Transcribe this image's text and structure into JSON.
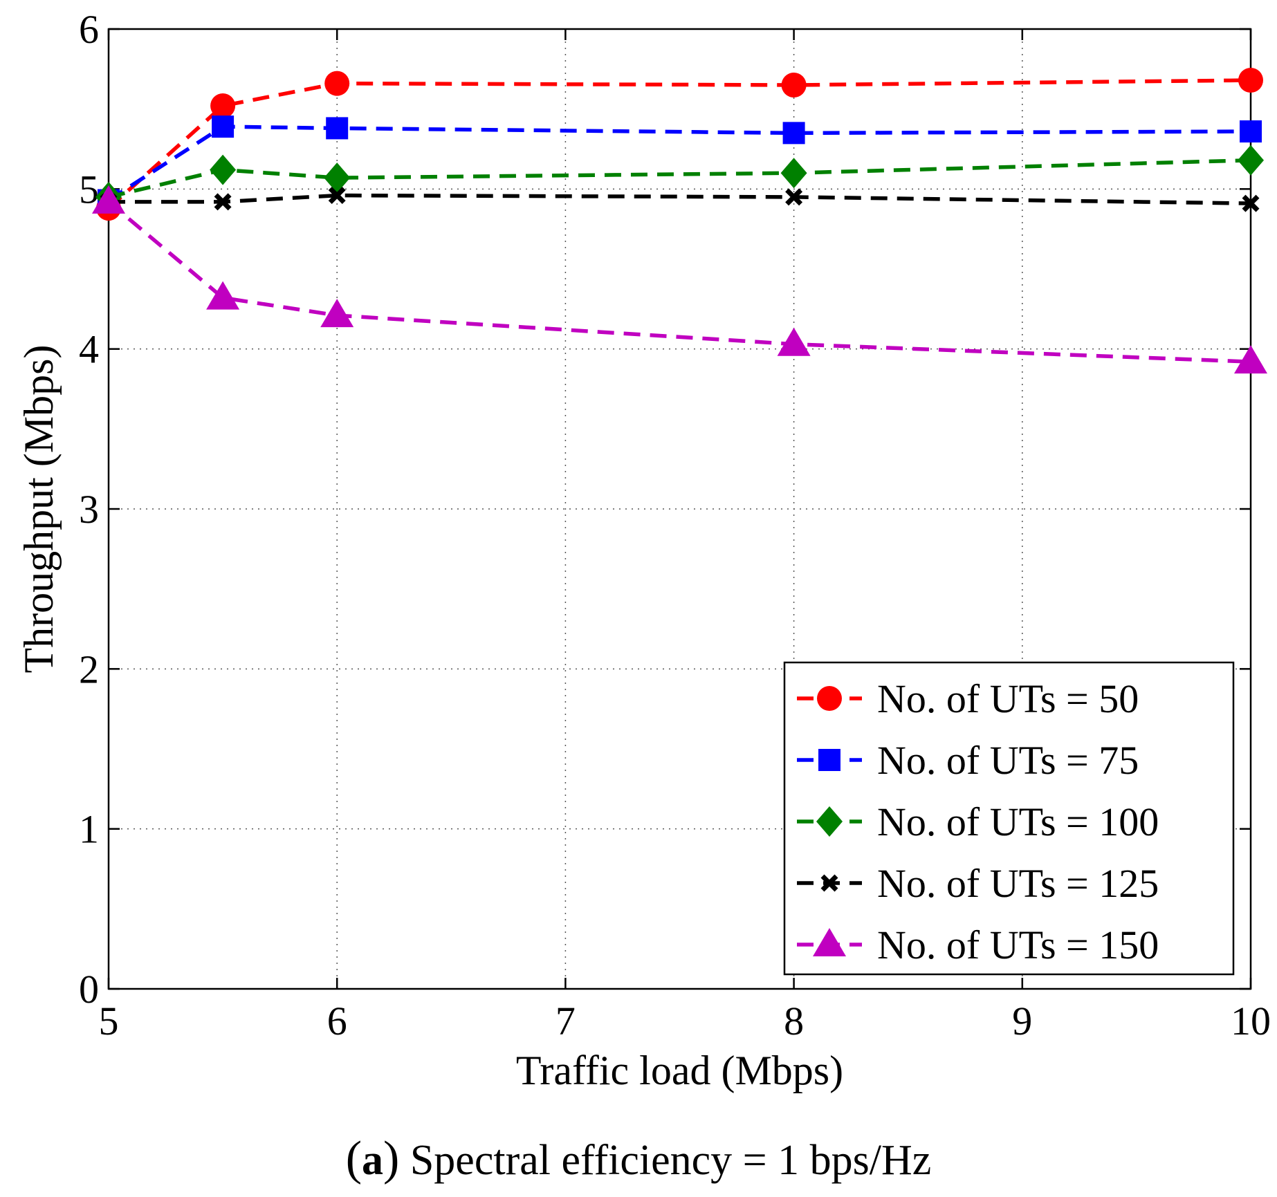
{
  "chart_data": {
    "type": "line",
    "title": "",
    "xlabel": "Traffic load (Mbps)",
    "ylabel": "Throughput (Mbps)",
    "xlim": [
      5,
      10
    ],
    "ylim": [
      0,
      6
    ],
    "xticks": [
      5,
      6,
      7,
      8,
      9,
      10
    ],
    "yticks": [
      0,
      1,
      2,
      3,
      4,
      5,
      6
    ],
    "grid": true,
    "legend_position": "bottom-right",
    "x": [
      5,
      5.5,
      6,
      8,
      10
    ],
    "series": [
      {
        "name": "No. of UTs = 50",
        "color": "#ff0000",
        "marker": "circle",
        "values": [
          4.88,
          5.52,
          5.66,
          5.65,
          5.68
        ]
      },
      {
        "name": "No. of UTs = 75",
        "color": "#0000ff",
        "marker": "square",
        "values": [
          4.93,
          5.39,
          5.38,
          5.35,
          5.36
        ]
      },
      {
        "name": "No. of UTs = 100",
        "color": "#008000",
        "marker": "diamond",
        "values": [
          4.95,
          5.12,
          5.07,
          5.1,
          5.18
        ]
      },
      {
        "name": "No. of UTs = 125",
        "color": "#000000",
        "marker": "x",
        "values": [
          4.92,
          4.92,
          4.96,
          4.95,
          4.91
        ]
      },
      {
        "name": "No. of UTs = 150",
        "color": "#c000c0",
        "marker": "triangle",
        "values": [
          4.92,
          4.32,
          4.21,
          4.03,
          3.92
        ]
      }
    ]
  },
  "caption": {
    "open_paren": "(",
    "letter": "a",
    "close_paren": ")",
    "text": " Spectral efficiency = 1 bps/Hz"
  }
}
